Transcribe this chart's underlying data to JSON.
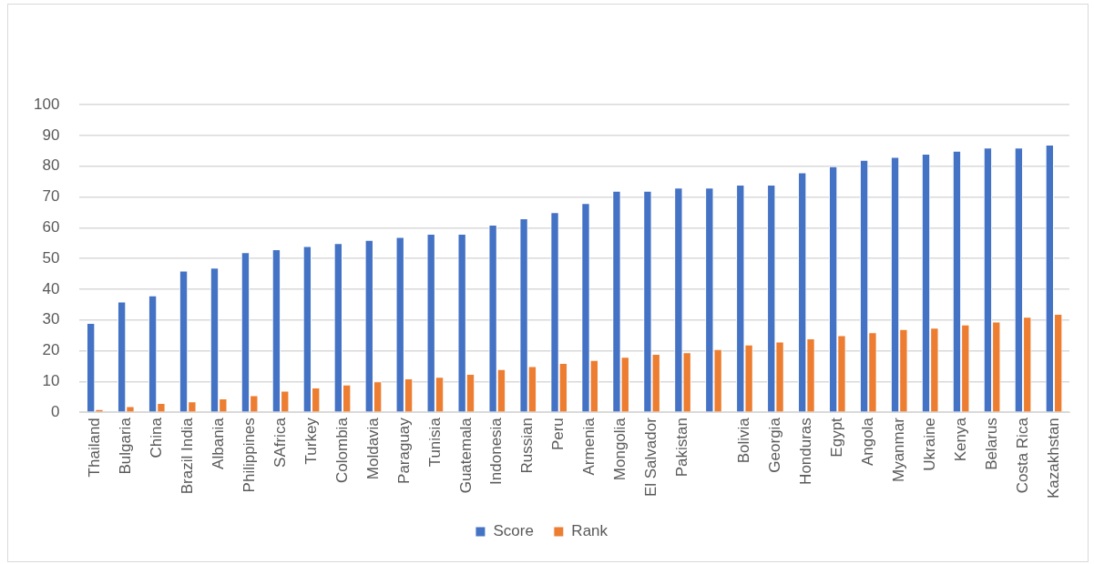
{
  "chart_data": {
    "type": "bar",
    "categories": [
      "Thailand",
      "Bulgaria",
      "China",
      "Brazil India",
      "Albania",
      "Philippines",
      "SAfrica",
      "Turkey",
      "Colombia",
      "Moldavia",
      "Paraguay",
      "Tunisia",
      "Guatemala",
      "Indonesia",
      "Russian",
      "Peru",
      "Armenia",
      "Mongolia",
      "El Salvador",
      "Pakistan",
      null,
      "Bolivia",
      "Georgia",
      "Honduras",
      "Egypt",
      "Angola",
      "Myanmar",
      "Ukraine",
      "Kenya",
      "Belarus",
      "Costa Rica",
      "Kazakhstan"
    ],
    "series": [
      {
        "name": "Score",
        "color": "#4472c4",
        "values": [
          29,
          36,
          38,
          46,
          47,
          52,
          53,
          54,
          55,
          56,
          57,
          58,
          58,
          61,
          63,
          65,
          68,
          72,
          72,
          73,
          73,
          74,
          74,
          78,
          80,
          82,
          83,
          84,
          85,
          86,
          86,
          87
        ]
      },
      {
        "name": "Rank",
        "color": "#ed7d31",
        "values": [
          1,
          2,
          3,
          3.5,
          4.5,
          5.5,
          7,
          8,
          9,
          10,
          11,
          11.5,
          12.5,
          14,
          15,
          16,
          17,
          18,
          19,
          19.5,
          20.5,
          22,
          23,
          24,
          25,
          26,
          27,
          27.5,
          28.5,
          29.5,
          31,
          32
        ]
      }
    ],
    "ylim": [
      0,
      100
    ],
    "yticks": [
      0,
      10,
      20,
      30,
      40,
      50,
      60,
      70,
      80,
      90,
      100
    ],
    "grid": "y",
    "legend": "bottom"
  }
}
